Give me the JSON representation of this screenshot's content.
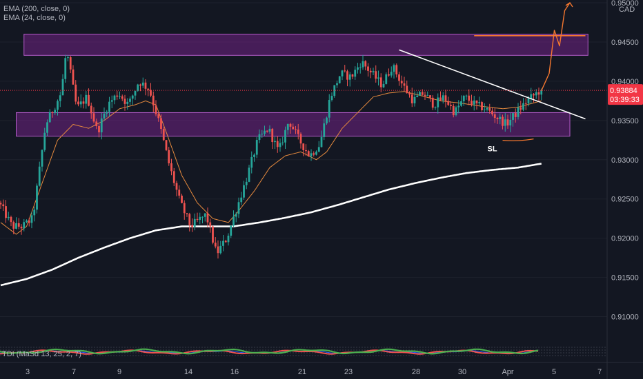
{
  "legend": {
    "ema200": "EMA (200, close, 0)",
    "ema24": "EMA (24, close, 0)"
  },
  "currency": "CAD",
  "current_price": {
    "value": "0.93884",
    "countdown": "03:39:33"
  },
  "annotation_sl": "SL",
  "sub_indicator": "TDI (MaSd 13, 25, 2, 7)",
  "colors": {
    "background": "#131722",
    "up": "#26a69a",
    "down": "#ef5350",
    "ema200": "#ffffff",
    "ema24": "#e68a3e",
    "zone": "#9c27b0",
    "trendline": "#ffffff",
    "drawing": "#f5772f",
    "price_tag": "#f23645"
  },
  "chart_data": {
    "type": "candlestick",
    "y_axis": {
      "range": [
        0.9075,
        0.95
      ],
      "ticks": [
        "0.95000",
        "0.94500",
        "0.94000",
        "0.93500",
        "0.93000",
        "0.92500",
        "0.92000",
        "0.91500",
        "0.91000"
      ]
    },
    "x_axis": {
      "ticks": [
        "3",
        "7",
        "9",
        "14",
        "16",
        "21",
        "23",
        "28",
        "30",
        "Apr",
        "5",
        "7"
      ]
    },
    "ohlc_anchor_path": [
      [
        0,
        0.9245
      ],
      [
        5,
        0.9215
      ],
      [
        9,
        0.9215
      ],
      [
        13,
        0.9225
      ],
      [
        18,
        0.9345
      ],
      [
        24,
        0.9385
      ],
      [
        26,
        0.944
      ],
      [
        30,
        0.9365
      ],
      [
        34,
        0.938
      ],
      [
        38,
        0.9335
      ],
      [
        42,
        0.937
      ],
      [
        46,
        0.9385
      ],
      [
        50,
        0.937
      ],
      [
        54,
        0.94
      ],
      [
        58,
        0.939
      ],
      [
        62,
        0.9345
      ],
      [
        66,
        0.929
      ],
      [
        70,
        0.9245
      ],
      [
        74,
        0.9215
      ],
      [
        80,
        0.923
      ],
      [
        84,
        0.918
      ],
      [
        88,
        0.92
      ],
      [
        92,
        0.924
      ],
      [
        96,
        0.928
      ],
      [
        100,
        0.9325
      ],
      [
        104,
        0.934
      ],
      [
        108,
        0.931
      ],
      [
        112,
        0.935
      ],
      [
        116,
        0.9325
      ],
      [
        120,
        0.9305
      ],
      [
        124,
        0.932
      ],
      [
        128,
        0.938
      ],
      [
        132,
        0.941
      ],
      [
        136,
        0.9405
      ],
      [
        140,
        0.9425
      ],
      [
        144,
        0.941
      ],
      [
        148,
        0.9395
      ],
      [
        152,
        0.942
      ],
      [
        156,
        0.9395
      ],
      [
        160,
        0.9375
      ],
      [
        164,
        0.9385
      ],
      [
        168,
        0.937
      ],
      [
        172,
        0.938
      ],
      [
        176,
        0.936
      ],
      [
        180,
        0.938
      ],
      [
        184,
        0.937
      ],
      [
        188,
        0.9365
      ],
      [
        192,
        0.9355
      ],
      [
        196,
        0.9345
      ],
      [
        200,
        0.936
      ],
      [
        204,
        0.9375
      ],
      [
        209,
        0.9388
      ]
    ],
    "ema24": [
      [
        0,
        0.922
      ],
      [
        6,
        0.9205
      ],
      [
        10,
        0.9215
      ],
      [
        16,
        0.927
      ],
      [
        22,
        0.9325
      ],
      [
        28,
        0.9345
      ],
      [
        34,
        0.934
      ],
      [
        40,
        0.935
      ],
      [
        46,
        0.9365
      ],
      [
        52,
        0.937
      ],
      [
        56,
        0.9375
      ],
      [
        60,
        0.937
      ],
      [
        64,
        0.9335
      ],
      [
        70,
        0.928
      ],
      [
        76,
        0.9245
      ],
      [
        82,
        0.9225
      ],
      [
        88,
        0.922
      ],
      [
        92,
        0.9235
      ],
      [
        98,
        0.926
      ],
      [
        104,
        0.929
      ],
      [
        110,
        0.9305
      ],
      [
        116,
        0.931
      ],
      [
        122,
        0.93
      ],
      [
        126,
        0.931
      ],
      [
        132,
        0.934
      ],
      [
        138,
        0.936
      ],
      [
        144,
        0.938
      ],
      [
        150,
        0.9385
      ],
      [
        156,
        0.9387
      ],
      [
        162,
        0.9382
      ],
      [
        170,
        0.9375
      ],
      [
        178,
        0.9372
      ],
      [
        186,
        0.9368
      ],
      [
        194,
        0.9365
      ],
      [
        200,
        0.9367
      ],
      [
        209,
        0.9375
      ]
    ],
    "ema200": [
      [
        0,
        0.914
      ],
      [
        10,
        0.9148
      ],
      [
        20,
        0.916
      ],
      [
        30,
        0.9175
      ],
      [
        40,
        0.9188
      ],
      [
        50,
        0.92
      ],
      [
        60,
        0.921
      ],
      [
        70,
        0.9215
      ],
      [
        80,
        0.9215
      ],
      [
        90,
        0.9215
      ],
      [
        100,
        0.922
      ],
      [
        110,
        0.9226
      ],
      [
        120,
        0.9233
      ],
      [
        130,
        0.9242
      ],
      [
        140,
        0.9252
      ],
      [
        150,
        0.9262
      ],
      [
        160,
        0.927
      ],
      [
        170,
        0.9277
      ],
      [
        180,
        0.9283
      ],
      [
        190,
        0.9287
      ],
      [
        200,
        0.929
      ],
      [
        209,
        0.9295
      ]
    ],
    "zones": [
      {
        "x0": 9,
        "x1": 227,
        "y0": 0.9433,
        "y1": 0.946
      },
      {
        "x0": 6,
        "x1": 220,
        "y0": 0.933,
        "y1": 0.936
      }
    ],
    "trendline": [
      [
        154,
        0.944
      ],
      [
        226,
        0.9352
      ]
    ],
    "current_price": 0.93884,
    "projection_path": [
      [
        209,
        0.9388
      ],
      [
        212,
        0.941
      ],
      [
        214,
        0.9465
      ],
      [
        216,
        0.9445
      ],
      [
        218,
        0.949
      ],
      [
        220,
        0.95
      ]
    ],
    "target_line": [
      [
        183,
        0.9458
      ],
      [
        226,
        0.9458
      ]
    ],
    "sl_underline": [
      [
        194,
        0.933
      ],
      [
        206,
        0.933
      ]
    ]
  }
}
